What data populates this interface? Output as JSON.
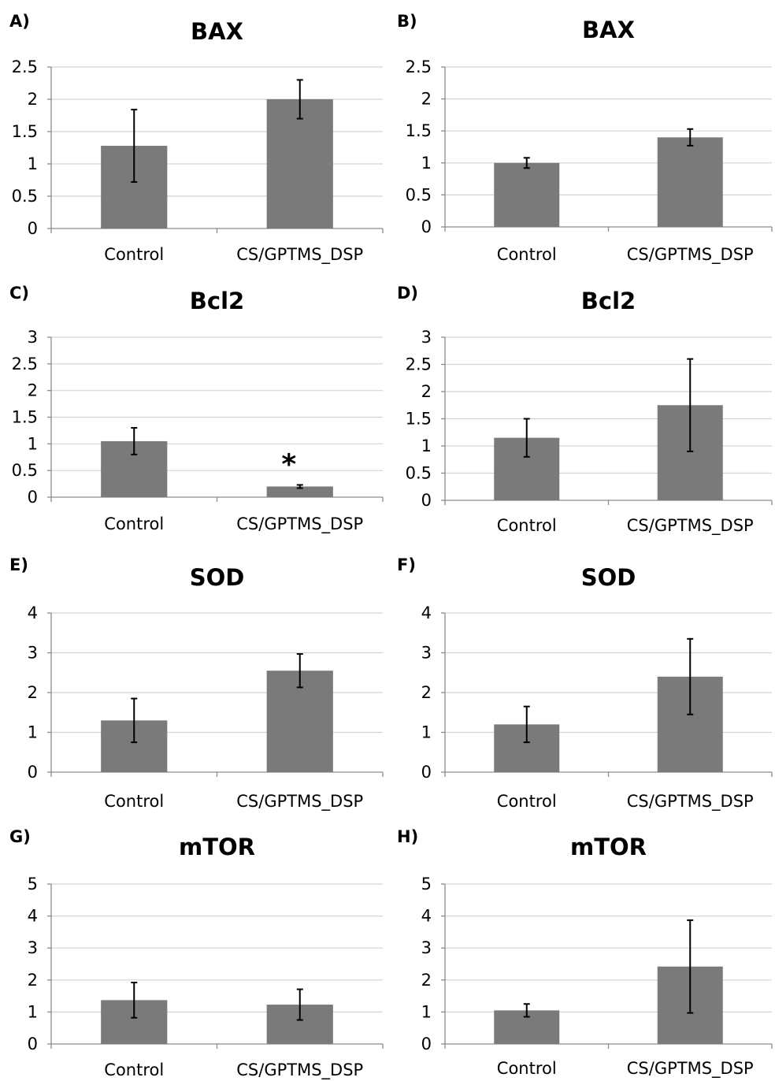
{
  "chart_data": [
    {
      "panel": "A)",
      "type": "bar",
      "title": "BAX",
      "categories": [
        "Control",
        "CS/GPTMS_DSP"
      ],
      "values": [
        1.28,
        2.0
      ],
      "errors": [
        0.56,
        0.3
      ],
      "ylim": [
        0,
        2.5
      ],
      "yticks": [
        "0",
        "0.5",
        "1",
        "1.5",
        "2",
        "2.5"
      ],
      "grid": true,
      "annotations": [
        {
          "index": 1,
          "text": ""
        }
      ]
    },
    {
      "panel": "B)",
      "type": "bar",
      "title": "BAX",
      "categories": [
        "Control",
        "CS/GPTMS_DSP"
      ],
      "values": [
        1.0,
        1.4
      ],
      "errors": [
        0.08,
        0.13
      ],
      "ylim": [
        0,
        2.5
      ],
      "yticks": [
        "0",
        "0.5",
        "1",
        "1.5",
        "2",
        "2.5"
      ],
      "grid": true,
      "annotations": [
        {
          "index": 1,
          "text": ""
        }
      ]
    },
    {
      "panel": "C)",
      "type": "bar",
      "title": "Bcl2",
      "categories": [
        "Control",
        "CS/GPTMS_DSP"
      ],
      "values": [
        1.05,
        0.2
      ],
      "errors": [
        0.25,
        0.03
      ],
      "ylim": [
        0,
        3
      ],
      "yticks": [
        "0",
        "0.5",
        "1",
        "1.5",
        "2",
        "2.5",
        "3"
      ],
      "grid": true,
      "annotations": [
        {
          "index": 1,
          "text": "*"
        }
      ]
    },
    {
      "panel": "D)",
      "type": "bar",
      "title": "Bcl2",
      "categories": [
        "Control",
        "CS/GPTMS_DSP"
      ],
      "values": [
        1.15,
        1.75
      ],
      "errors": [
        0.35,
        0.85
      ],
      "ylim": [
        0,
        3
      ],
      "yticks": [
        "0",
        "0.5",
        "1",
        "1.5",
        "2",
        "2.5",
        "3"
      ],
      "grid": true,
      "annotations": [
        {
          "index": 1,
          "text": ""
        }
      ]
    },
    {
      "panel": "E)",
      "type": "bar",
      "title": "SOD",
      "categories": [
        "Control",
        "CS/GPTMS_DSP"
      ],
      "values": [
        1.3,
        2.55
      ],
      "errors": [
        0.55,
        0.42
      ],
      "ylim": [
        0,
        4
      ],
      "yticks": [
        "0",
        "1",
        "2",
        "3",
        "4"
      ],
      "grid": true,
      "annotations": [
        {
          "index": 1,
          "text": ""
        }
      ]
    },
    {
      "panel": "F)",
      "type": "bar",
      "title": "SOD",
      "categories": [
        "Control",
        "CS/GPTMS_DSP"
      ],
      "values": [
        1.2,
        2.4
      ],
      "errors": [
        0.45,
        0.95
      ],
      "ylim": [
        0,
        4
      ],
      "yticks": [
        "0",
        "1",
        "2",
        "3",
        "4"
      ],
      "grid": true,
      "annotations": [
        {
          "index": 1,
          "text": ""
        }
      ]
    },
    {
      "panel": "G)",
      "type": "bar",
      "title": "mTOR",
      "categories": [
        "Control",
        "CS/GPTMS_DSP"
      ],
      "values": [
        1.37,
        1.23
      ],
      "errors": [
        0.55,
        0.48
      ],
      "ylim": [
        0,
        5
      ],
      "yticks": [
        "0",
        "1",
        "2",
        "3",
        "4",
        "5"
      ],
      "grid": true,
      "annotations": [
        {
          "index": 1,
          "text": ""
        }
      ]
    },
    {
      "panel": "H)",
      "type": "bar",
      "title": "mTOR",
      "categories": [
        "Control",
        "CS/GPTMS_DSP"
      ],
      "values": [
        1.05,
        2.42
      ],
      "errors": [
        0.2,
        1.45
      ],
      "ylim": [
        0,
        5
      ],
      "yticks": [
        "0",
        "1",
        "2",
        "3",
        "4",
        "5"
      ],
      "grid": true,
      "annotations": [
        {
          "index": 1,
          "text": ""
        }
      ]
    }
  ]
}
